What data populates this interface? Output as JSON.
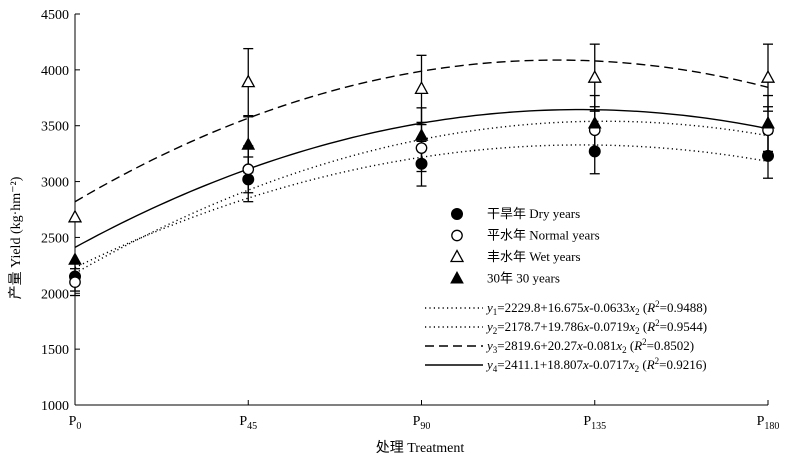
{
  "chart_data": {
    "type": "line",
    "xlabel": "处理 Treatment",
    "ylabel": "产量 Yield (kg·hm⁻²)",
    "ylim": [
      1000,
      4500
    ],
    "yticks": [
      1000,
      1500,
      2000,
      2500,
      3000,
      3500,
      4000,
      4500
    ],
    "categories": [
      {
        "base": "P",
        "sub": "0",
        "x": 0
      },
      {
        "base": "P",
        "sub": "45",
        "x": 45
      },
      {
        "base": "P",
        "sub": "90",
        "x": 90
      },
      {
        "base": "P",
        "sub": "135",
        "x": 135
      },
      {
        "base": "P",
        "sub": "180",
        "x": 180
      }
    ],
    "series": [
      {
        "name": "干旱年 Dry years",
        "marker": "circle-filled",
        "color": "#000000",
        "values": [
          2150,
          3020,
          3160,
          3270,
          3230
        ],
        "errors": [
          130,
          200,
          200,
          200,
          200
        ]
      },
      {
        "name": "平水年 Normal years",
        "marker": "circle-open",
        "color": "#000000",
        "values": [
          2100,
          3110,
          3300,
          3460,
          3460
        ],
        "errors": [
          120,
          210,
          210,
          210,
          210
        ]
      },
      {
        "name": "丰水年 Wet years",
        "marker": "triangle-open",
        "color": "#000000",
        "values": [
          2680,
          3890,
          3830,
          3930,
          3930
        ],
        "errors": [
          0,
          300,
          300,
          300,
          300
        ]
      },
      {
        "name": "30年 30 years",
        "marker": "triangle-filled",
        "color": "#000000",
        "values": [
          2300,
          3330,
          3410,
          3520,
          3520
        ],
        "errors": [
          0,
          250,
          250,
          250,
          250
        ]
      }
    ],
    "fits": [
      {
        "dash": "dotted",
        "a": 2229.8,
        "b": 16.675,
        "c": 0.0633,
        "label_y": "y",
        "label_sub": "1",
        "label_eq": "=2229.8+16.675",
        "coef_c": "-0.0633",
        "r2": "0.9488"
      },
      {
        "dash": "dotted",
        "a": 2178.7,
        "b": 19.786,
        "c": 0.0719,
        "label_y": "y",
        "label_sub": "2",
        "label_eq": "=2178.7+19.786",
        "coef_c": "-0.0719",
        "r2": "0.9544"
      },
      {
        "dash": "dashed",
        "a": 2819.6,
        "b": 20.27,
        "c": 0.081,
        "label_y": "y",
        "label_sub": "3",
        "label_eq": "=2819.6+20.27",
        "coef_c": "-0.081",
        "r2": "0.8502"
      },
      {
        "dash": "solid",
        "a": 2411.1,
        "b": 18.807,
        "c": 0.0717,
        "label_y": "y",
        "label_sub": "4",
        "label_eq": "=2411.1+18.807",
        "coef_c": "-0.0717",
        "r2": "0.9216"
      }
    ],
    "fit_text": {
      "x": "x",
      "x2": "x",
      "x2_sub": "2",
      "r": "R",
      "r_sup": "2",
      "eq": "="
    },
    "legend_position": "lower-right",
    "grid": false
  }
}
